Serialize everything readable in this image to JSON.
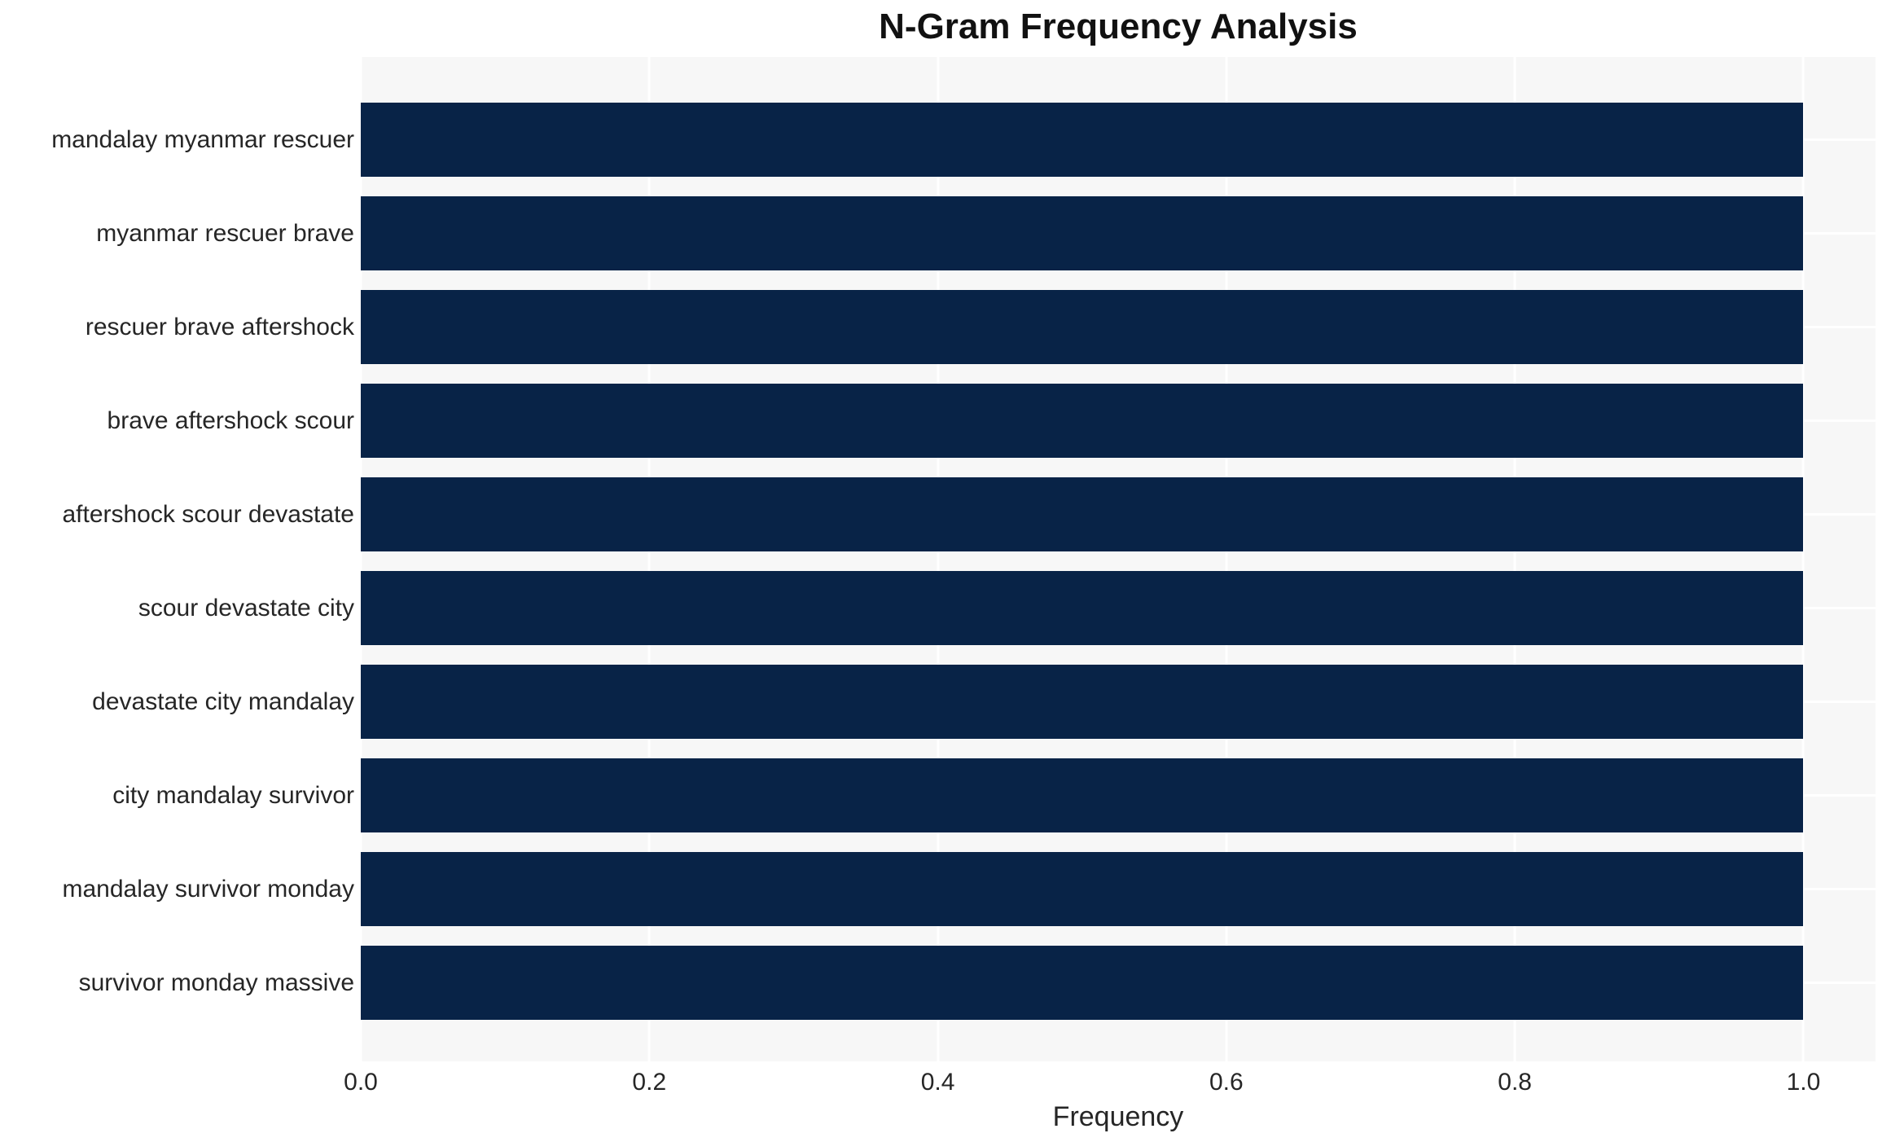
{
  "chart_data": {
    "type": "bar",
    "orientation": "horizontal",
    "title": "N-Gram Frequency Analysis",
    "xlabel": "Frequency",
    "ylabel": "",
    "categories": [
      "mandalay myanmar rescuer",
      "myanmar rescuer brave",
      "rescuer brave aftershock",
      "brave aftershock scour",
      "aftershock scour devastate",
      "scour devastate city",
      "devastate city mandalay",
      "city mandalay survivor",
      "mandalay survivor monday",
      "survivor monday massive"
    ],
    "values": [
      1.0,
      1.0,
      1.0,
      1.0,
      1.0,
      1.0,
      1.0,
      1.0,
      1.0,
      1.0
    ],
    "xlim": [
      0.0,
      1.05
    ],
    "xticks": [
      0.0,
      0.2,
      0.4,
      0.6,
      0.8,
      1.0
    ],
    "xtick_labels": [
      "0.0",
      "0.2",
      "0.4",
      "0.6",
      "0.8",
      "1.0"
    ],
    "grid": true,
    "legend": false,
    "bar_width_fraction": 0.8,
    "colors": {
      "bar": "#082347",
      "plot_background": "#f7f7f7",
      "figure_background": "#ffffff",
      "gridline": "#ffffff",
      "text": "#262626",
      "title_text": "#111111"
    }
  }
}
